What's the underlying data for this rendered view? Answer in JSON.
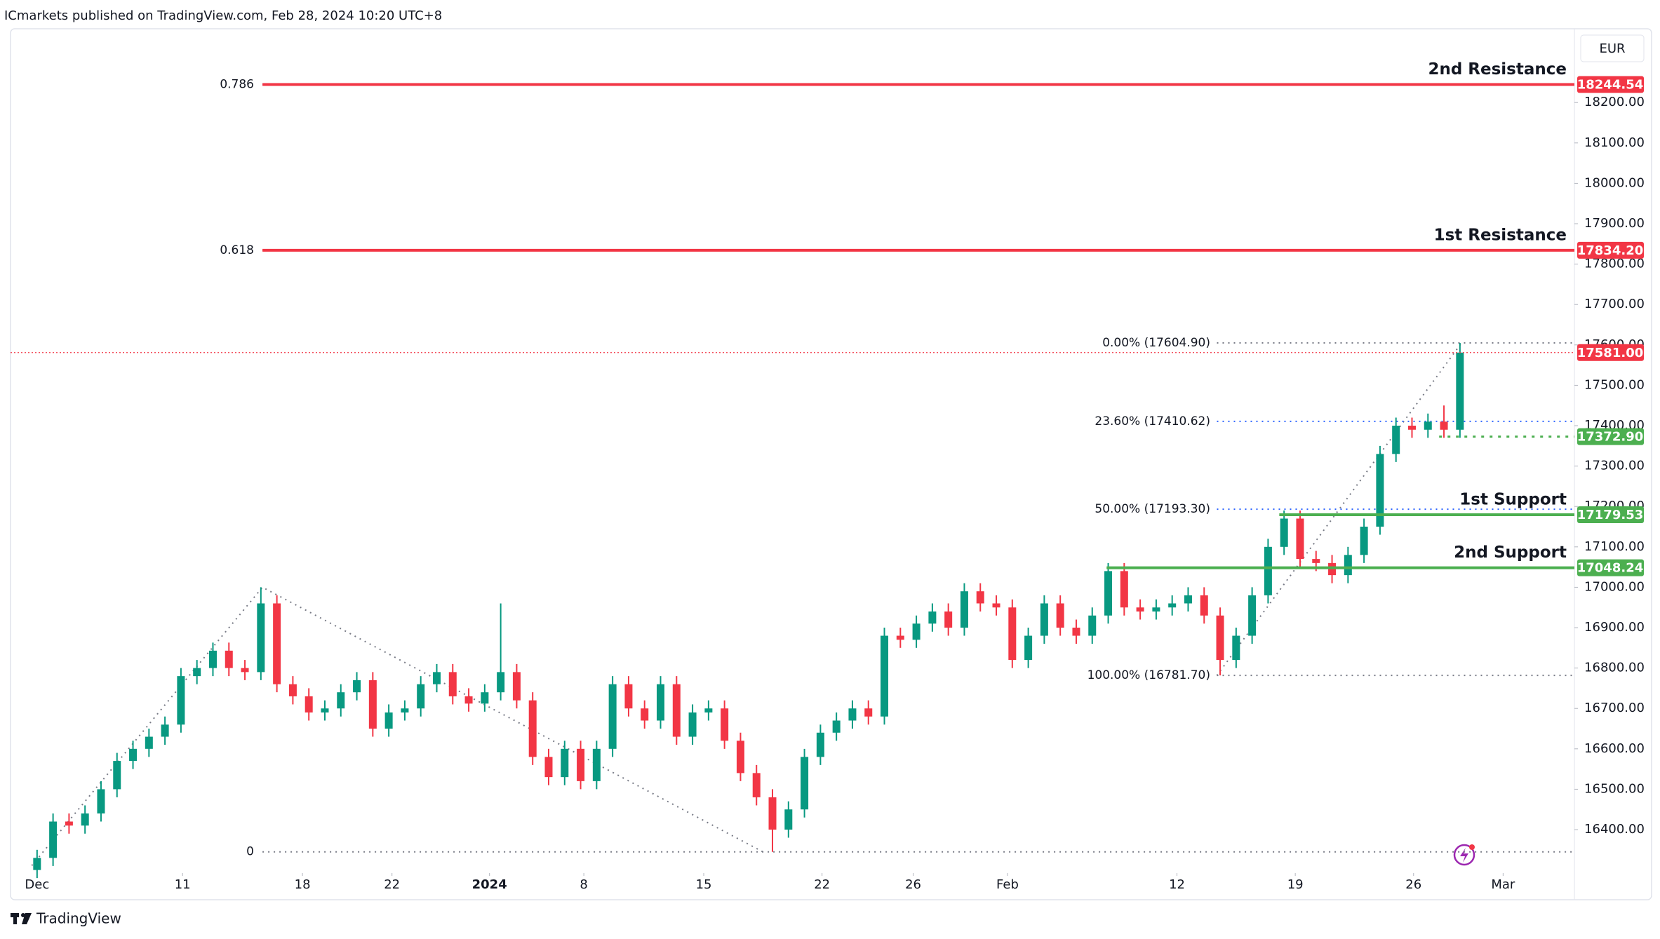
{
  "header": "ICmarkets published on TradingView.com, Feb 28, 2024 10:20 UTC+8",
  "footer": "TradingView",
  "currency": "EUR",
  "chart_data": {
    "type": "candlestick",
    "up_color": "#089981",
    "down_color": "#f23645",
    "grid": false,
    "xlim": [
      -1.66,
      96.16
    ],
    "ylim": [
      16292.4,
      18375.7
    ],
    "xticks": [
      {
        "value": 0,
        "label": "Dec"
      },
      {
        "value": 9.1,
        "label": "11"
      },
      {
        "value": 16.6,
        "label": "18"
      },
      {
        "value": 22.2,
        "label": "22"
      },
      {
        "value": 28.3,
        "label": "2024",
        "bold": true
      },
      {
        "value": 34.2,
        "label": "8"
      },
      {
        "value": 41.7,
        "label": "15"
      },
      {
        "value": 49.1,
        "label": "22"
      },
      {
        "value": 54.8,
        "label": "26"
      },
      {
        "value": 60.7,
        "label": "Feb"
      },
      {
        "value": 71.3,
        "label": "12"
      },
      {
        "value": 78.7,
        "label": "19"
      },
      {
        "value": 86.1,
        "label": "26"
      },
      {
        "value": 91.7,
        "label": "Mar"
      }
    ],
    "yticks": [
      {
        "value": 16400,
        "label": "16400.00"
      },
      {
        "value": 16500,
        "label": "16500.00"
      },
      {
        "value": 16600,
        "label": "16600.00"
      },
      {
        "value": 16700,
        "label": "16700.00"
      },
      {
        "value": 16800,
        "label": "16800.00"
      },
      {
        "value": 16900,
        "label": "16900.00"
      },
      {
        "value": 17000,
        "label": "17000.00"
      },
      {
        "value": 17100,
        "label": "17100.00"
      },
      {
        "value": 17200,
        "label": "17200.00"
      },
      {
        "value": 17300,
        "label": "17300.00"
      },
      {
        "value": 17400,
        "label": "17400.00"
      },
      {
        "value": 17500,
        "label": "17500.00"
      },
      {
        "value": 17600,
        "label": "17600.00"
      },
      {
        "value": 17700,
        "label": "17700.00"
      },
      {
        "value": 17800,
        "label": "17800.00"
      },
      {
        "value": 17900,
        "label": "17900.00"
      },
      {
        "value": 18000,
        "label": "18000.00"
      },
      {
        "value": 18100,
        "label": "18100.00"
      },
      {
        "value": 18200,
        "label": "18200.00"
      }
    ],
    "candles": {
      "open": [
        16300,
        16330,
        16420,
        16410,
        16440,
        16500,
        16570,
        16600,
        16630,
        16660,
        16780,
        16800,
        16843,
        16800,
        16790,
        16960,
        16760,
        16730,
        16690,
        16700,
        16740,
        16770,
        16650,
        16690,
        16700,
        16760,
        16790,
        16730,
        16712,
        16740,
        16790,
        16720,
        16580,
        16530,
        16600,
        16520,
        16600,
        16760,
        16700,
        16670,
        16760,
        16630,
        16690,
        16700,
        16620,
        16540,
        16480,
        16400,
        16450,
        16580,
        16640,
        16670,
        16700,
        16680,
        16880,
        16870,
        16910,
        16940,
        16900,
        16990,
        16960,
        16950,
        16820,
        16880,
        16960,
        16900,
        16880,
        16930,
        17040,
        16950,
        16940,
        16950,
        16960,
        16980,
        16930,
        16820,
        16880,
        16980,
        17100,
        17170,
        17070,
        17060,
        17030,
        17080,
        17150,
        17330,
        17400,
        17390,
        17410,
        17390
      ],
      "high": [
        16350,
        16440,
        16440,
        16460,
        16520,
        16590,
        16620,
        16650,
        16680,
        16800,
        16820,
        16863,
        16863,
        16820,
        17000,
        16980,
        16780,
        16750,
        16720,
        16760,
        16790,
        16790,
        16710,
        16720,
        16780,
        16810,
        16810,
        16750,
        16760,
        16960,
        16810,
        16740,
        16600,
        16620,
        16620,
        16620,
        16780,
        16780,
        16720,
        16780,
        16780,
        16710,
        16720,
        16720,
        16640,
        16560,
        16500,
        16470,
        16600,
        16660,
        16690,
        16720,
        16720,
        16900,
        16900,
        16930,
        16960,
        16960,
        17010,
        17010,
        16980,
        16970,
        16900,
        16980,
        16980,
        16920,
        16950,
        17060,
        17060,
        16970,
        16970,
        16980,
        17000,
        17000,
        16950,
        16900,
        17000,
        17120,
        17190,
        17190,
        17090,
        17080,
        17100,
        17170,
        17350,
        17420,
        17420,
        17430,
        17450,
        17604.9
      ],
      "low": [
        16280,
        16310,
        16390,
        16390,
        16420,
        16480,
        16550,
        16580,
        16610,
        16640,
        16760,
        16780,
        16780,
        16770,
        16770,
        16740,
        16710,
        16670,
        16670,
        16680,
        16720,
        16630,
        16630,
        16670,
        16680,
        16740,
        16710,
        16692,
        16692,
        16720,
        16700,
        16560,
        16510,
        16510,
        16500,
        16500,
        16580,
        16680,
        16650,
        16650,
        16610,
        16610,
        16670,
        16600,
        16520,
        16460,
        16345,
        16380,
        16430,
        16560,
        16620,
        16650,
        16660,
        16660,
        16850,
        16850,
        16890,
        16880,
        16880,
        16940,
        16930,
        16800,
        16800,
        16860,
        16880,
        16860,
        16860,
        16910,
        16930,
        16920,
        16920,
        16930,
        16940,
        16910,
        16781.7,
        16800,
        16860,
        16960,
        17080,
        17050,
        17040,
        17010,
        17010,
        17060,
        17130,
        17310,
        17370,
        17370,
        17370,
        17370
      ],
      "close": [
        16330,
        16420,
        16410,
        16440,
        16500,
        16570,
        16600,
        16630,
        16660,
        16780,
        16800,
        16843,
        16800,
        16790,
        16960,
        16760,
        16730,
        16690,
        16700,
        16740,
        16770,
        16650,
        16690,
        16700,
        16760,
        16790,
        16730,
        16712,
        16740,
        16790,
        16720,
        16580,
        16530,
        16600,
        16520,
        16600,
        16760,
        16700,
        16670,
        16760,
        16630,
        16690,
        16700,
        16620,
        16540,
        16480,
        16400,
        16450,
        16580,
        16640,
        16670,
        16700,
        16680,
        16880,
        16870,
        16910,
        16940,
        16900,
        16990,
        16960,
        16950,
        16820,
        16880,
        16960,
        16900,
        16880,
        16930,
        17040,
        16950,
        16940,
        16950,
        16960,
        16980,
        16930,
        16820,
        16880,
        16980,
        17100,
        17170,
        17070,
        17060,
        17030,
        17080,
        17150,
        17330,
        17400,
        17390,
        17410,
        17390,
        17581
      ]
    },
    "trendlines": [
      {
        "x": [
          -0.33,
          14.1,
          45.4
        ],
        "y": [
          16311,
          17000,
          16345
        ]
      },
      {
        "x": [
          73.8,
          89.1
        ],
        "y": [
          16781.7,
          17604.9
        ]
      }
    ],
    "fib_left": [
      {
        "label": "0.786",
        "value": 18244.54,
        "color": "#2962ff",
        "from": 14.1
      },
      {
        "label": "0.618",
        "value": 17834.2,
        "color": "#c99a1a",
        "from": 14.1
      },
      {
        "label": "0",
        "value": 16345,
        "color": "#787b86",
        "from": 14.1
      }
    ],
    "fib_right": [
      {
        "label": "0.00% (17604.90)",
        "value": 17604.9,
        "color": "#787b86",
        "from": 73.8
      },
      {
        "label": "23.60% (17410.62)",
        "value": 17410.62,
        "color": "#2962ff",
        "from": 73.8
      },
      {
        "label": "50.00% (17193.30)",
        "value": 17193.3,
        "color": "#2962ff",
        "from": 73.8
      },
      {
        "label": "100.00% (16781.70)",
        "value": 16781.7,
        "color": "#787b86",
        "from": 73.8
      }
    ],
    "levels": [
      {
        "name": "2nd Resistance",
        "value": 18244.54,
        "price_label": "18244.54",
        "color": "#f23645",
        "style": "solid",
        "from": 14.1
      },
      {
        "name": "1st Resistance",
        "value": 17834.2,
        "price_label": "17834.20",
        "color": "#f23645",
        "style": "solid",
        "from": 14.1
      },
      {
        "value": 17581,
        "price_label": "17581.00",
        "color": "#f23645",
        "style": "thin",
        "from": -1.66
      },
      {
        "value": 17372.9,
        "price_label": "17372.90",
        "color": "#4caf50",
        "style": "dotted",
        "from": 87.7
      },
      {
        "name": "1st Support",
        "value": 17179.53,
        "price_label": "17179.53",
        "color": "#4caf50",
        "style": "solid",
        "from": 77.7
      },
      {
        "name": "2nd Support",
        "value": 17048.24,
        "price_label": "17048.24",
        "color": "#4caf50",
        "style": "solid",
        "from": 66.9
      }
    ]
  }
}
